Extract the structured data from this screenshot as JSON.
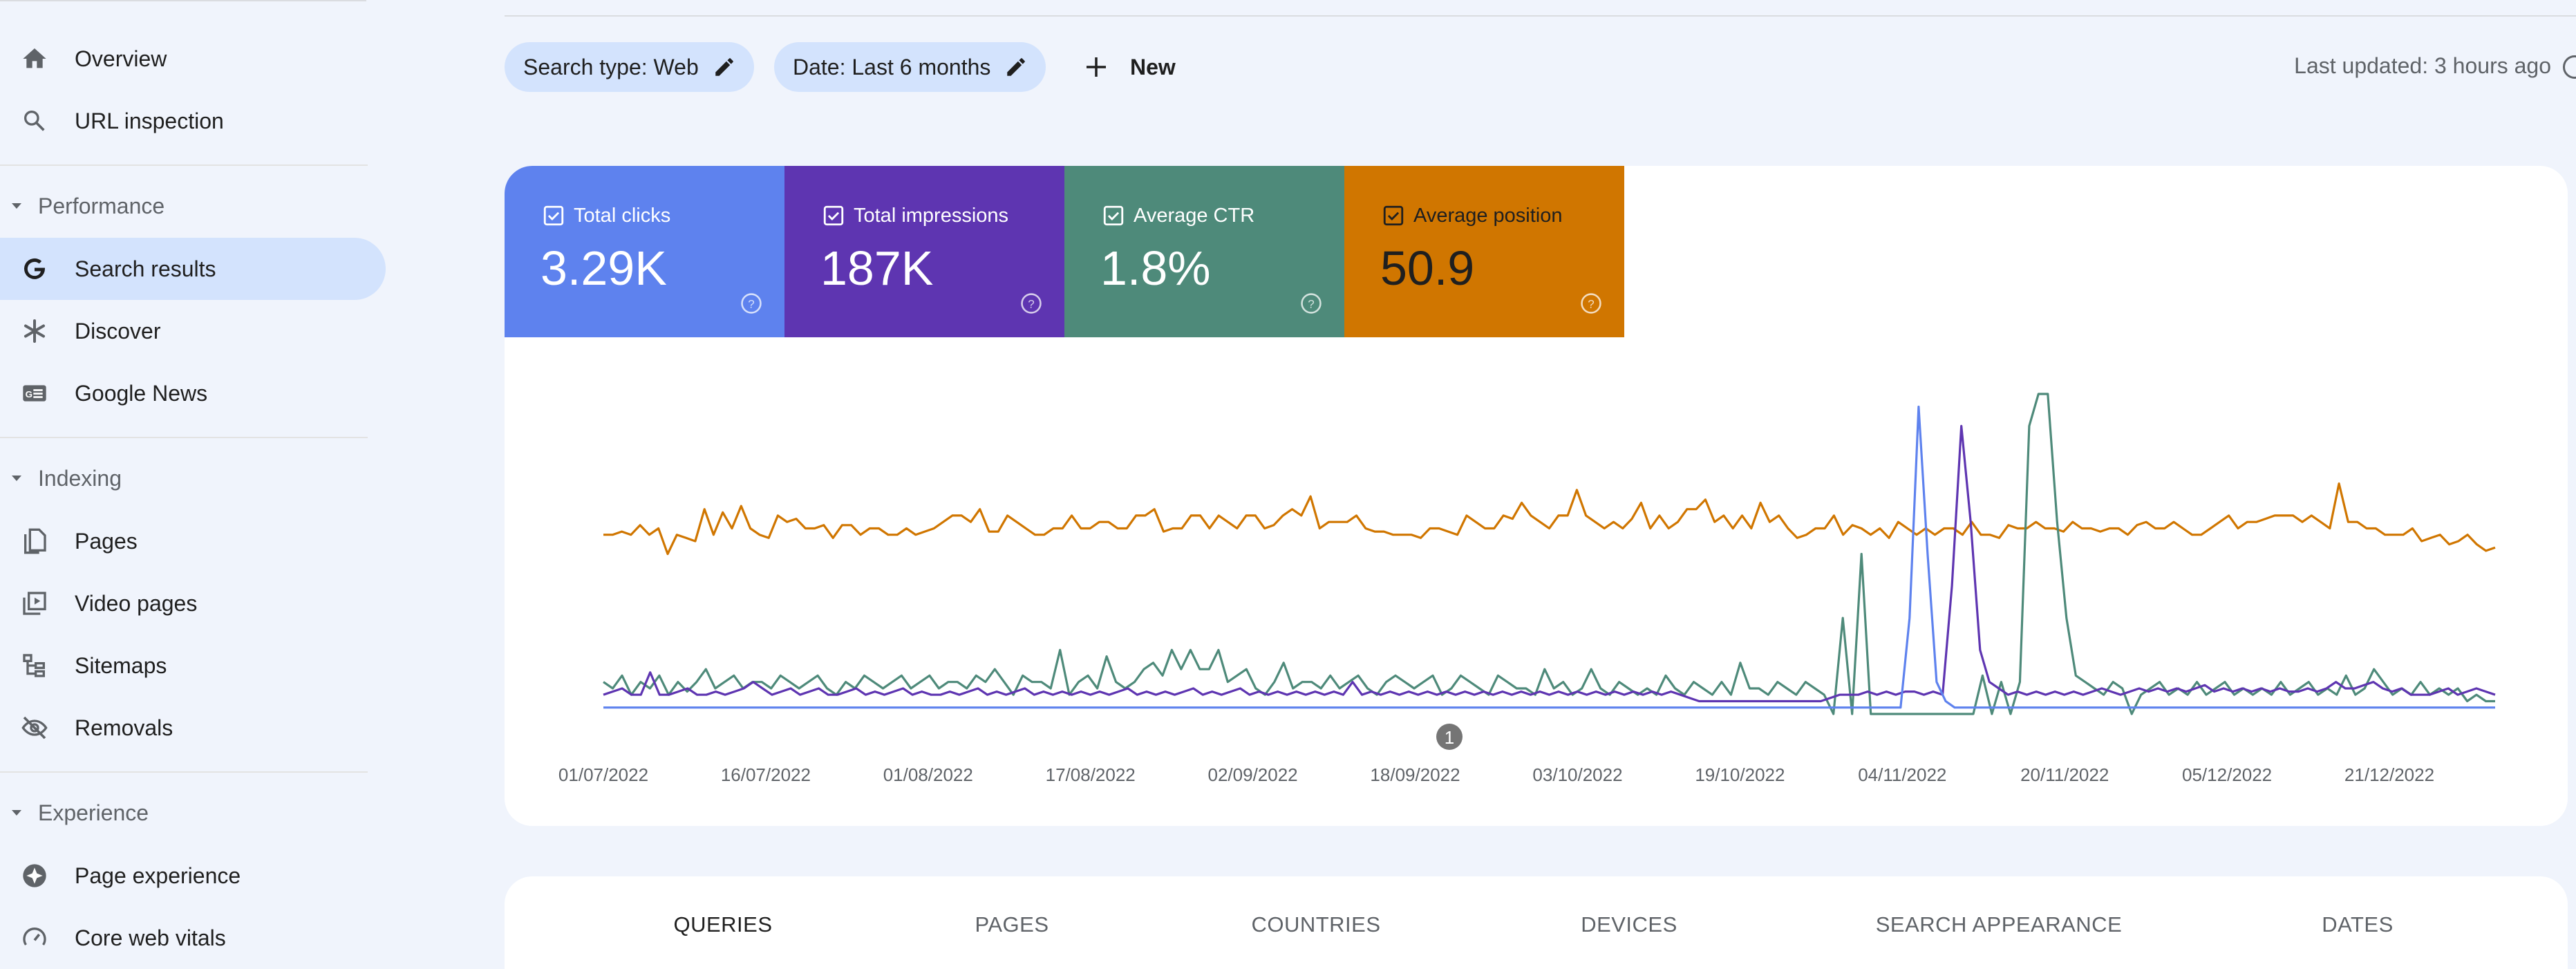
{
  "sidebar": {
    "overview": "Overview",
    "url_inspection": "URL inspection",
    "performance_section": "Performance",
    "search_results": "Search results",
    "discover": "Discover",
    "google_news": "Google News",
    "indexing_section": "Indexing",
    "pages": "Pages",
    "video_pages": "Video pages",
    "sitemaps": "Sitemaps",
    "removals": "Removals",
    "experience_section": "Experience",
    "page_experience": "Page experience",
    "core_web_vitals": "Core web vitals"
  },
  "filters": {
    "search_type": "Search type: Web",
    "date": "Date: Last 6 months",
    "new_label": "New"
  },
  "last_updated": "Last updated: 3 hours ago",
  "metrics": {
    "clicks": {
      "label": "Total clicks",
      "value": "3.29K",
      "color": "#5e82ee"
    },
    "impressions": {
      "label": "Total impressions",
      "value": "187K",
      "color": "#5e35b1"
    },
    "ctr": {
      "label": "Average CTR",
      "value": "1.8%",
      "color": "#4e8a7a"
    },
    "position": {
      "label": "Average position",
      "value": "50.9",
      "color": "#d07600"
    }
  },
  "chart_data": {
    "type": "line",
    "x_tick_labels": [
      "01/07/2022",
      "16/07/2022",
      "01/08/2022",
      "17/08/2022",
      "02/09/2022",
      "18/09/2022",
      "03/10/2022",
      "19/10/2022",
      "04/11/2022",
      "20/11/2022",
      "05/12/2022",
      "21/12/2022"
    ],
    "y_axis_shown": false,
    "annotation": "1",
    "x_range": [
      "01/07/2022",
      "31/12/2022"
    ],
    "series": [
      {
        "name": "Average position",
        "color": "#d07600",
        "values_relative": [
          0.56,
          0.56,
          0.57,
          0.56,
          0.59,
          0.56,
          0.58,
          0.5,
          0.56,
          0.55,
          0.54,
          0.64,
          0.56,
          0.63,
          0.58,
          0.65,
          0.58,
          0.56,
          0.55,
          0.62,
          0.6,
          0.61,
          0.58,
          0.58,
          0.59,
          0.55,
          0.59,
          0.59,
          0.56,
          0.58,
          0.58,
          0.56,
          0.56,
          0.58,
          0.56,
          0.57,
          0.58,
          0.6,
          0.62,
          0.62,
          0.6,
          0.64,
          0.57,
          0.57,
          0.62,
          0.6,
          0.58,
          0.56,
          0.56,
          0.58,
          0.58,
          0.62,
          0.58,
          0.58,
          0.6,
          0.6,
          0.58,
          0.58,
          0.62,
          0.62,
          0.64,
          0.57,
          0.58,
          0.58,
          0.62,
          0.62,
          0.58,
          0.62,
          0.6,
          0.58,
          0.62,
          0.62,
          0.58,
          0.59,
          0.62,
          0.64,
          0.62,
          0.68,
          0.58,
          0.6,
          0.6,
          0.6,
          0.62,
          0.58,
          0.57,
          0.57,
          0.56,
          0.56,
          0.56,
          0.55,
          0.58,
          0.58,
          0.57,
          0.56,
          0.62,
          0.6,
          0.58,
          0.58,
          0.62,
          0.61,
          0.66,
          0.62,
          0.6,
          0.58,
          0.62,
          0.62,
          0.7,
          0.62,
          0.6,
          0.58,
          0.6,
          0.58,
          0.61,
          0.66,
          0.58,
          0.62,
          0.58,
          0.6,
          0.64,
          0.64,
          0.67,
          0.6,
          0.62,
          0.58,
          0.62,
          0.58,
          0.66,
          0.6,
          0.62,
          0.58,
          0.55,
          0.56,
          0.58,
          0.58,
          0.62,
          0.56,
          0.59,
          0.58,
          0.56,
          0.58,
          0.55,
          0.6,
          0.58,
          0.56,
          0.58,
          0.56,
          0.58,
          0.58,
          0.56,
          0.6,
          0.56,
          0.56,
          0.55,
          0.59,
          0.58,
          0.58,
          0.6,
          0.58,
          0.58,
          0.57,
          0.6,
          0.58,
          0.58,
          0.57,
          0.58,
          0.58,
          0.56,
          0.59,
          0.6,
          0.58,
          0.58,
          0.6,
          0.58,
          0.56,
          0.56,
          0.58,
          0.6,
          0.62,
          0.58,
          0.6,
          0.6,
          0.61,
          0.62,
          0.62,
          0.62,
          0.6,
          0.62,
          0.6,
          0.58,
          0.72,
          0.6,
          0.6,
          0.58,
          0.58,
          0.56,
          0.56,
          0.56,
          0.58,
          0.54,
          0.55,
          0.56,
          0.53,
          0.54,
          0.56,
          0.53,
          0.51,
          0.52
        ]
      },
      {
        "name": "Average CTR",
        "color": "#4e8a7a",
        "values_relative": [
          0.1,
          0.08,
          0.12,
          0.06,
          0.1,
          0.08,
          0.12,
          0.06,
          0.1,
          0.07,
          0.1,
          0.14,
          0.08,
          0.1,
          0.12,
          0.08,
          0.1,
          0.1,
          0.08,
          0.12,
          0.1,
          0.08,
          0.1,
          0.12,
          0.08,
          0.06,
          0.1,
          0.08,
          0.12,
          0.1,
          0.08,
          0.1,
          0.12,
          0.08,
          0.1,
          0.12,
          0.08,
          0.1,
          0.1,
          0.08,
          0.12,
          0.1,
          0.14,
          0.1,
          0.06,
          0.12,
          0.1,
          0.1,
          0.08,
          0.2,
          0.06,
          0.1,
          0.12,
          0.08,
          0.18,
          0.1,
          0.08,
          0.1,
          0.14,
          0.16,
          0.12,
          0.2,
          0.14,
          0.2,
          0.14,
          0.14,
          0.2,
          0.1,
          0.12,
          0.14,
          0.08,
          0.06,
          0.1,
          0.16,
          0.08,
          0.1,
          0.1,
          0.08,
          0.12,
          0.08,
          0.1,
          0.12,
          0.08,
          0.06,
          0.1,
          0.12,
          0.1,
          0.08,
          0.1,
          0.12,
          0.06,
          0.08,
          0.12,
          0.1,
          0.08,
          0.06,
          0.12,
          0.1,
          0.08,
          0.08,
          0.06,
          0.14,
          0.08,
          0.1,
          0.06,
          0.08,
          0.14,
          0.08,
          0.06,
          0.1,
          0.08,
          0.06,
          0.08,
          0.06,
          0.12,
          0.08,
          0.06,
          0.1,
          0.08,
          0.06,
          0.1,
          0.06,
          0.16,
          0.08,
          0.08,
          0.06,
          0.1,
          0.08,
          0.06,
          0.1,
          0.08,
          0.06,
          0.0,
          0.3,
          0.0,
          0.5,
          0.0,
          0.0,
          0.0,
          0.0,
          0.0,
          0.0,
          0.0,
          0.0,
          0.0,
          0.0,
          0.0,
          0.0,
          0.12,
          0.0,
          0.1,
          0.0,
          0.1,
          0.9,
          1.0,
          1.0,
          0.6,
          0.3,
          0.12,
          0.1,
          0.08,
          0.06,
          0.1,
          0.08,
          0.0,
          0.06,
          0.08,
          0.1,
          0.06,
          0.08,
          0.06,
          0.1,
          0.06,
          0.08,
          0.1,
          0.06,
          0.08,
          0.06,
          0.08,
          0.06,
          0.1,
          0.06,
          0.08,
          0.1,
          0.06,
          0.08,
          0.06,
          0.12,
          0.06,
          0.08,
          0.14,
          0.1,
          0.06,
          0.08,
          0.06,
          0.1,
          0.06,
          0.08,
          0.06,
          0.08,
          0.04,
          0.06,
          0.04,
          0.04
        ]
      },
      {
        "name": "Total impressions",
        "color": "#5e35b1",
        "values_relative": [
          0.06,
          0.07,
          0.08,
          0.06,
          0.06,
          0.13,
          0.06,
          0.06,
          0.07,
          0.08,
          0.06,
          0.06,
          0.07,
          0.06,
          0.07,
          0.08,
          0.1,
          0.08,
          0.06,
          0.07,
          0.08,
          0.06,
          0.07,
          0.08,
          0.06,
          0.06,
          0.07,
          0.08,
          0.06,
          0.07,
          0.06,
          0.07,
          0.08,
          0.06,
          0.07,
          0.06,
          0.06,
          0.07,
          0.06,
          0.07,
          0.08,
          0.06,
          0.07,
          0.06,
          0.07,
          0.08,
          0.06,
          0.07,
          0.06,
          0.07,
          0.06,
          0.07,
          0.06,
          0.07,
          0.06,
          0.07,
          0.08,
          0.06,
          0.07,
          0.06,
          0.07,
          0.06,
          0.07,
          0.08,
          0.06,
          0.07,
          0.06,
          0.07,
          0.08,
          0.06,
          0.07,
          0.06,
          0.07,
          0.06,
          0.07,
          0.06,
          0.07,
          0.06,
          0.07,
          0.06,
          0.1,
          0.06,
          0.07,
          0.06,
          0.07,
          0.06,
          0.07,
          0.06,
          0.07,
          0.06,
          0.07,
          0.06,
          0.07,
          0.06,
          0.07,
          0.06,
          0.07,
          0.06,
          0.07,
          0.06,
          0.07,
          0.06,
          0.07,
          0.06,
          0.07,
          0.06,
          0.07,
          0.06,
          0.07,
          0.06,
          0.07,
          0.06,
          0.07,
          0.06,
          0.07,
          0.06,
          0.05,
          0.04,
          0.04,
          0.04,
          0.04,
          0.04,
          0.04,
          0.04,
          0.04,
          0.04,
          0.04,
          0.04,
          0.04,
          0.04,
          0.04,
          0.05,
          0.06,
          0.06,
          0.06,
          0.07,
          0.06,
          0.07,
          0.06,
          0.07,
          0.07,
          0.06,
          0.07,
          0.06,
          0.4,
          0.9,
          0.6,
          0.2,
          0.1,
          0.08,
          0.06,
          0.07,
          0.06,
          0.07,
          0.06,
          0.07,
          0.06,
          0.07,
          0.06,
          0.07,
          0.08,
          0.07,
          0.06,
          0.07,
          0.08,
          0.07,
          0.08,
          0.07,
          0.08,
          0.07,
          0.08,
          0.09,
          0.07,
          0.08,
          0.07,
          0.08,
          0.07,
          0.08,
          0.07,
          0.08,
          0.07,
          0.07,
          0.08,
          0.07,
          0.08,
          0.1,
          0.08,
          0.08,
          0.09,
          0.1,
          0.08,
          0.07,
          0.08,
          0.06,
          0.06,
          0.06,
          0.07,
          0.08,
          0.06,
          0.07,
          0.08,
          0.07,
          0.06
        ]
      },
      {
        "name": "Total clicks",
        "color": "#5e82ee",
        "values_relative": [
          0.02,
          0.02,
          0.02,
          0.02,
          0.02,
          0.02,
          0.02,
          0.02,
          0.02,
          0.02,
          0.02,
          0.02,
          0.02,
          0.02,
          0.02,
          0.02,
          0.02,
          0.02,
          0.02,
          0.02,
          0.02,
          0.02,
          0.02,
          0.02,
          0.02,
          0.02,
          0.02,
          0.02,
          0.02,
          0.02,
          0.02,
          0.02,
          0.02,
          0.02,
          0.02,
          0.02,
          0.02,
          0.02,
          0.02,
          0.02,
          0.02,
          0.02,
          0.02,
          0.02,
          0.02,
          0.02,
          0.02,
          0.02,
          0.02,
          0.02,
          0.02,
          0.02,
          0.02,
          0.02,
          0.02,
          0.02,
          0.02,
          0.02,
          0.02,
          0.02,
          0.02,
          0.02,
          0.02,
          0.02,
          0.02,
          0.02,
          0.02,
          0.02,
          0.02,
          0.02,
          0.02,
          0.02,
          0.02,
          0.02,
          0.02,
          0.02,
          0.02,
          0.02,
          0.02,
          0.02,
          0.02,
          0.02,
          0.02,
          0.02,
          0.02,
          0.02,
          0.02,
          0.02,
          0.02,
          0.02,
          0.02,
          0.02,
          0.02,
          0.02,
          0.02,
          0.02,
          0.02,
          0.02,
          0.02,
          0.02,
          0.02,
          0.02,
          0.02,
          0.02,
          0.02,
          0.02,
          0.02,
          0.02,
          0.02,
          0.02,
          0.02,
          0.02,
          0.02,
          0.02,
          0.02,
          0.02,
          0.02,
          0.02,
          0.02,
          0.02,
          0.02,
          0.02,
          0.02,
          0.02,
          0.02,
          0.02,
          0.02,
          0.02,
          0.02,
          0.02,
          0.02,
          0.02,
          0.02,
          0.02,
          0.02,
          0.02,
          0.02,
          0.02,
          0.02,
          0.02,
          0.02,
          0.02,
          0.02,
          0.02,
          0.02,
          0.3,
          0.96,
          0.5,
          0.1,
          0.04,
          0.02,
          0.02,
          0.02,
          0.02,
          0.02,
          0.02,
          0.02,
          0.02,
          0.02,
          0.02,
          0.02,
          0.02,
          0.02,
          0.02,
          0.02,
          0.02,
          0.02,
          0.02,
          0.02,
          0.02,
          0.02,
          0.02,
          0.02,
          0.02,
          0.02,
          0.02,
          0.02,
          0.02,
          0.02,
          0.02,
          0.02,
          0.02,
          0.02,
          0.02,
          0.02,
          0.02,
          0.02,
          0.02,
          0.02,
          0.02,
          0.02,
          0.02,
          0.02,
          0.02,
          0.02,
          0.02,
          0.02,
          0.02,
          0.02,
          0.02,
          0.02,
          0.02,
          0.02,
          0.02,
          0.02,
          0.02,
          0.02,
          0.02,
          0.02,
          0.02,
          0.02
        ]
      }
    ]
  },
  "tabs": [
    "QUERIES",
    "PAGES",
    "COUNTRIES",
    "DEVICES",
    "SEARCH APPEARANCE",
    "DATES"
  ],
  "active_tab": "QUERIES"
}
